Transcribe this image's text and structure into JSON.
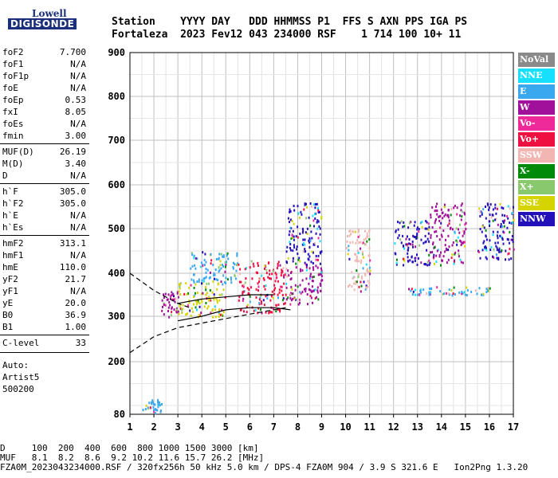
{
  "logo": {
    "top": "Lowell",
    "bottom": "DIGISONDE"
  },
  "header": {
    "line1": "Station    YYYY DAY   DDD HHMMSS P1  FFS S AXN PPS IGA PS",
    "line2": "Fortaleza  2023 Fev12 043 234000 RSF    1 714 100 10+ 11"
  },
  "params": [
    {
      "k": "foF2",
      "v": "7.700"
    },
    {
      "k": "foF1",
      "v": "N/A"
    },
    {
      "k": "foF1p",
      "v": "N/A"
    },
    {
      "k": "foE",
      "v": "N/A"
    },
    {
      "k": "foEp",
      "v": "0.53"
    },
    {
      "k": "fxI",
      "v": "8.05"
    },
    {
      "k": "foEs",
      "v": "N/A"
    },
    {
      "k": "fmin",
      "v": "3.00"
    },
    {
      "k": "MUF(D)",
      "v": "26.19"
    },
    {
      "k": "M(D)",
      "v": "3.40"
    },
    {
      "k": "D",
      "v": "N/A"
    },
    {
      "k": "h`F",
      "v": "305.0"
    },
    {
      "k": "h`F2",
      "v": "305.0"
    },
    {
      "k": "h`E",
      "v": "N/A"
    },
    {
      "k": "h`Es",
      "v": "N/A"
    },
    {
      "k": "hmF2",
      "v": "313.1"
    },
    {
      "k": "hmF1",
      "v": "N/A"
    },
    {
      "k": "hmE",
      "v": "110.0"
    },
    {
      "k": "yF2",
      "v": "21.7"
    },
    {
      "k": "yF1",
      "v": "N/A"
    },
    {
      "k": "yE",
      "v": "20.0"
    },
    {
      "k": "B0",
      "v": "36.9"
    },
    {
      "k": "B1",
      "v": "1.00"
    },
    {
      "k": "C-level",
      "v": "33"
    }
  ],
  "auto": {
    "l1": "Auto:",
    "l2": "Artist5",
    "l3": "500200"
  },
  "legend": [
    {
      "label": "NoVal",
      "color": "#8a8a8a"
    },
    {
      "label": "NNE",
      "color": "#17e0ff"
    },
    {
      "label": "E",
      "color": "#3aa8ee"
    },
    {
      "label": "W",
      "color": "#a0109a"
    },
    {
      "label": "Vo-",
      "color": "#ee2a9a"
    },
    {
      "label": "Vo+",
      "color": "#ee1040"
    },
    {
      "label": "SSW",
      "color": "#f2b6b2"
    },
    {
      "label": "X-",
      "color": "#008a0a"
    },
    {
      "label": "X+",
      "color": "#8ac86e"
    },
    {
      "label": "SSE",
      "color": "#d6d400"
    },
    {
      "label": "NNW",
      "color": "#2410b8"
    }
  ],
  "footer": {
    "line1": "D     100  200  400  600  800 1000 1500 3000 [km]",
    "line2": "MUF   8.1  8.2  8.6  9.2 10.2 11.6 15.7 26.2 [MHz]",
    "line3": "FZA0M_2023043234000.RSF / 320fx256h 50 kHz 5.0 km / DPS-4 FZA0M 904 / 3.9 S 321.6 E   Ion2Png 1.3.20"
  },
  "chart_data": {
    "type": "scatter",
    "x_ticks": [
      "1",
      "2",
      "3",
      "4",
      "5",
      "6",
      "7",
      "8",
      "9",
      "10",
      "11",
      "12",
      "13",
      "14",
      "15",
      "16",
      "17"
    ],
    "y_ticks": [
      "80",
      "200",
      "300",
      "400",
      "500",
      "600",
      "700",
      "800",
      "900"
    ],
    "xlim": [
      1,
      17
    ],
    "ylim": [
      80,
      900
    ],
    "y_scale": "nonlinear (virtual height ionogram)",
    "grid": true,
    "clusters": [
      {
        "x": [
          1.5,
          2.3
        ],
        "y": [
          85,
          115
        ],
        "color": "#3aa8ee"
      },
      {
        "x": [
          2.3,
          3.0
        ],
        "y": [
          300,
          360
        ],
        "color": "#a0109a"
      },
      {
        "x": [
          3.0,
          5.0
        ],
        "y": [
          300,
          380
        ],
        "color": "#d6d400"
      },
      {
        "x": [
          3.5,
          5.5
        ],
        "y": [
          380,
          450
        ],
        "color": "#3aa8ee"
      },
      {
        "x": [
          5.5,
          7.5
        ],
        "y": [
          310,
          430
        ],
        "color": "#ee1040"
      },
      {
        "x": [
          7.5,
          9.0
        ],
        "y": [
          330,
          420
        ],
        "color": "#a0109a"
      },
      {
        "x": [
          7.5,
          9.0
        ],
        "y": [
          420,
          560
        ],
        "color": "#2410b8"
      },
      {
        "x": [
          10.0,
          11.0
        ],
        "y": [
          360,
          500
        ],
        "color": "#f2b6b2"
      },
      {
        "x": [
          12.0,
          13.5
        ],
        "y": [
          420,
          520
        ],
        "color": "#2410b8"
      },
      {
        "x": [
          13.5,
          15.0
        ],
        "y": [
          420,
          560
        ],
        "color": "#a0109a"
      },
      {
        "x": [
          12.5,
          16.0
        ],
        "y": [
          350,
          370
        ],
        "color": "#3aa8ee"
      },
      {
        "x": [
          15.5,
          17.0
        ],
        "y": [
          430,
          560
        ],
        "color": "#2410b8"
      }
    ],
    "traces": [
      {
        "name": "",
        "style": "dashed",
        "x": [
          1,
          2,
          3,
          3.5
        ],
        "y": [
          400,
          360,
          330,
          320
        ]
      },
      {
        "name": "",
        "style": "dashed",
        "x": [
          1,
          2,
          3,
          4,
          5,
          6,
          7,
          7.5
        ],
        "y": [
          220,
          255,
          275,
          285,
          295,
          305,
          315,
          320
        ]
      },
      {
        "name": "",
        "style": "solid",
        "x": [
          3,
          4,
          5,
          6,
          7,
          7.7
        ],
        "y": [
          290,
          300,
          315,
          320,
          320,
          315
        ]
      },
      {
        "name": "",
        "style": "solid",
        "x": [
          3,
          4,
          5,
          6,
          7
        ],
        "y": [
          330,
          340,
          345,
          350,
          350
        ]
      }
    ]
  }
}
